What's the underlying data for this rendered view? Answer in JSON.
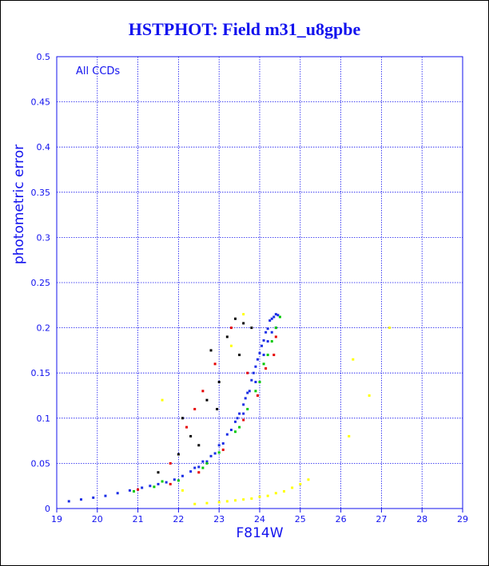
{
  "chart_data": {
    "type": "scatter",
    "title": "HSTPHOT: Field m31_u8gpbe",
    "xlabel": "F814W",
    "ylabel": "photometric error",
    "annotation": "All CCDs",
    "xlim": [
      19,
      29
    ],
    "ylim": [
      0,
      0.5
    ],
    "x_ticks": [
      "19",
      "20",
      "21",
      "22",
      "23",
      "24",
      "25",
      "26",
      "27",
      "28",
      "29"
    ],
    "y_ticks": [
      "0",
      "0.05",
      "0.1",
      "0.15",
      "0.2",
      "0.25",
      "0.3",
      "0.35",
      "0.4",
      "0.45",
      "0.5"
    ],
    "grid": true,
    "colors": {
      "axes": "#1212ee",
      "grid": "#1212ee",
      "text": "#1212ee"
    },
    "series": [
      {
        "color": "#1a2ee6",
        "points": [
          [
            19.3,
            0.008
          ],
          [
            19.6,
            0.01
          ],
          [
            19.9,
            0.012
          ],
          [
            20.2,
            0.014
          ],
          [
            20.5,
            0.017
          ],
          [
            20.8,
            0.02
          ],
          [
            21.1,
            0.023
          ],
          [
            21.3,
            0.025
          ],
          [
            21.5,
            0.027
          ],
          [
            21.7,
            0.029
          ],
          [
            21.9,
            0.032
          ],
          [
            22.1,
            0.036
          ],
          [
            22.3,
            0.041
          ],
          [
            22.5,
            0.046
          ],
          [
            22.7,
            0.052
          ],
          [
            22.9,
            0.061
          ],
          [
            23.1,
            0.072
          ],
          [
            23.3,
            0.087
          ],
          [
            23.4,
            0.096
          ],
          [
            23.5,
            0.105
          ],
          [
            23.6,
            0.115
          ],
          [
            23.7,
            0.128
          ],
          [
            23.8,
            0.142
          ],
          [
            23.9,
            0.157
          ],
          [
            24.0,
            0.172
          ],
          [
            24.1,
            0.186
          ],
          [
            24.2,
            0.199
          ],
          [
            24.3,
            0.21
          ],
          [
            24.4,
            0.215
          ],
          [
            22.4,
            0.045
          ],
          [
            22.6,
            0.052
          ],
          [
            22.8,
            0.058
          ],
          [
            23.0,
            0.07
          ],
          [
            23.2,
            0.082
          ],
          [
            23.45,
            0.1
          ],
          [
            23.65,
            0.122
          ],
          [
            23.85,
            0.15
          ],
          [
            23.95,
            0.165
          ],
          [
            24.05,
            0.18
          ],
          [
            24.15,
            0.195
          ],
          [
            24.25,
            0.208
          ],
          [
            24.35,
            0.212
          ],
          [
            24.45,
            0.214
          ],
          [
            23.6,
            0.105
          ],
          [
            23.75,
            0.13
          ],
          [
            23.9,
            0.14
          ],
          [
            24.1,
            0.17
          ],
          [
            24.2,
            0.185
          ],
          [
            24.3,
            0.195
          ],
          [
            24.4,
            0.2
          ]
        ]
      },
      {
        "color": "#00c800",
        "points": [
          [
            20.9,
            0.019
          ],
          [
            21.4,
            0.024
          ],
          [
            22.0,
            0.031
          ],
          [
            22.6,
            0.045
          ],
          [
            23.0,
            0.062
          ],
          [
            23.4,
            0.085
          ],
          [
            23.7,
            0.11
          ],
          [
            23.9,
            0.13
          ],
          [
            24.1,
            0.16
          ],
          [
            24.3,
            0.185
          ],
          [
            24.4,
            0.2
          ],
          [
            24.5,
            0.212
          ],
          [
            21.6,
            0.03
          ],
          [
            22.7,
            0.05
          ],
          [
            23.5,
            0.09
          ],
          [
            24.0,
            0.14
          ],
          [
            24.2,
            0.17
          ]
        ]
      },
      {
        "color": "#e60000",
        "points": [
          [
            21.0,
            0.021
          ],
          [
            21.8,
            0.027
          ],
          [
            22.5,
            0.04
          ],
          [
            23.1,
            0.065
          ],
          [
            23.6,
            0.098
          ],
          [
            23.95,
            0.125
          ],
          [
            24.15,
            0.155
          ],
          [
            24.35,
            0.17
          ],
          [
            22.2,
            0.09
          ],
          [
            22.4,
            0.11
          ],
          [
            22.9,
            0.16
          ],
          [
            23.3,
            0.2
          ],
          [
            21.8,
            0.05
          ],
          [
            22.6,
            0.13
          ],
          [
            23.7,
            0.15
          ],
          [
            24.4,
            0.19
          ]
        ]
      },
      {
        "color": "#000000",
        "points": [
          [
            21.5,
            0.04
          ],
          [
            22.0,
            0.06
          ],
          [
            22.3,
            0.08
          ],
          [
            22.7,
            0.12
          ],
          [
            23.0,
            0.14
          ],
          [
            23.2,
            0.19
          ],
          [
            23.5,
            0.17
          ],
          [
            23.6,
            0.205
          ],
          [
            22.1,
            0.1
          ],
          [
            22.8,
            0.175
          ],
          [
            23.4,
            0.21
          ],
          [
            23.8,
            0.2
          ],
          [
            22.5,
            0.07
          ],
          [
            22.95,
            0.11
          ]
        ]
      },
      {
        "color": "#ffff00",
        "points": [
          [
            22.4,
            0.005
          ],
          [
            22.7,
            0.006
          ],
          [
            23.0,
            0.007
          ],
          [
            23.2,
            0.008
          ],
          [
            23.4,
            0.009
          ],
          [
            23.6,
            0.01
          ],
          [
            23.8,
            0.011
          ],
          [
            24.0,
            0.013
          ],
          [
            24.2,
            0.014
          ],
          [
            24.4,
            0.017
          ],
          [
            24.6,
            0.019
          ],
          [
            24.8,
            0.023
          ],
          [
            25.0,
            0.027
          ],
          [
            25.2,
            0.032
          ],
          [
            26.2,
            0.08
          ],
          [
            26.3,
            0.165
          ],
          [
            26.7,
            0.125
          ],
          [
            27.2,
            0.2
          ],
          [
            21.6,
            0.12
          ],
          [
            22.1,
            0.02
          ],
          [
            23.6,
            0.215
          ],
          [
            23.3,
            0.18
          ]
        ]
      }
    ]
  }
}
